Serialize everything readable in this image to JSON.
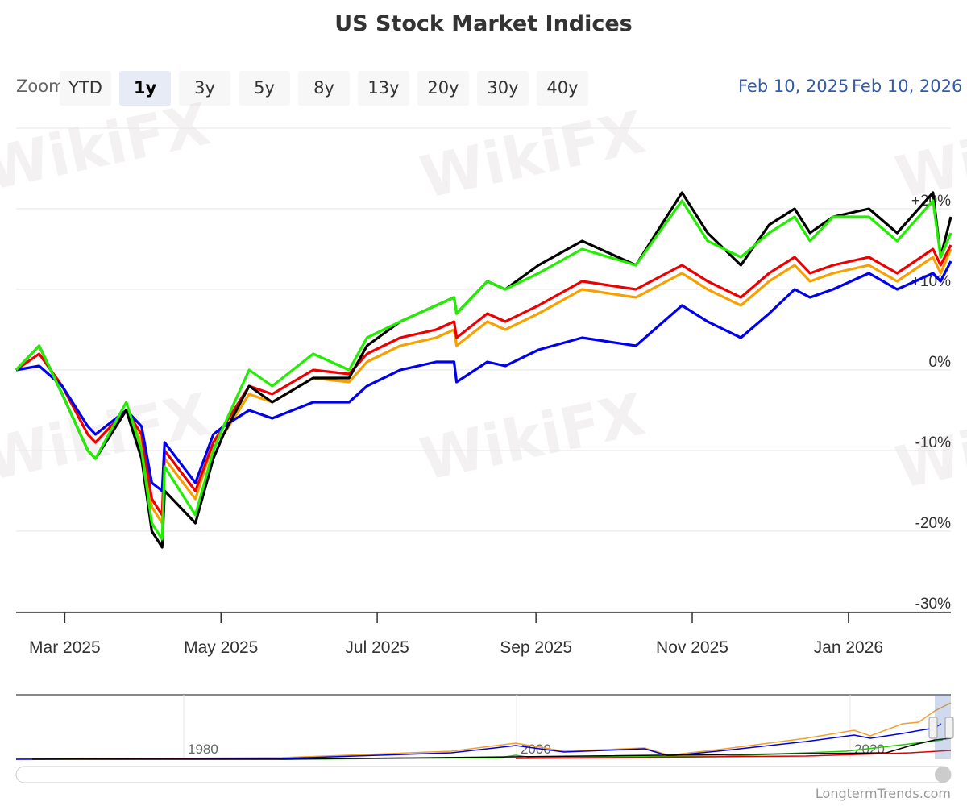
{
  "title": "US Stock Market Indices",
  "zoom": {
    "label": "Zoom",
    "buttons": [
      "YTD",
      "1y",
      "3y",
      "5y",
      "8y",
      "13y",
      "20y",
      "30y",
      "40y"
    ],
    "selected": "1y"
  },
  "range": {
    "from": "Feb 10, 2025",
    "to": "Feb 10, 2026"
  },
  "credit": "LongtermTrends.com",
  "watermark": "WikiFX",
  "navigator": {
    "ticks": [
      "1980",
      "2000",
      "2020"
    ]
  },
  "chart_data": {
    "type": "line",
    "title": "US Stock Market Indices",
    "xlabel": "",
    "ylabel": "",
    "ylim": [
      -30,
      30
    ],
    "y_unit": "%",
    "y_ticks": [
      "-30%",
      "-20%",
      "-10%",
      "0%",
      "+10%",
      "+20%"
    ],
    "x_ticks": [
      {
        "date": "2025-03-01",
        "label": "Mar 2025"
      },
      {
        "date": "2025-05-01",
        "label": "May 2025"
      },
      {
        "date": "2025-07-01",
        "label": "Jul 2025"
      },
      {
        "date": "2025-09-01",
        "label": "Sep 2025"
      },
      {
        "date": "2025-11-01",
        "label": "Nov 2025"
      },
      {
        "date": "2026-01-01",
        "label": "Jan 2026"
      }
    ],
    "xlim": [
      "2025-02-10",
      "2026-02-10"
    ],
    "grid": true,
    "legend": "none",
    "x": [
      "2025-02-10",
      "2025-02-19",
      "2025-02-28",
      "2025-03-10",
      "2025-03-13",
      "2025-03-25",
      "2025-03-31",
      "2025-04-04",
      "2025-04-08",
      "2025-04-09",
      "2025-04-21",
      "2025-04-28",
      "2025-05-02",
      "2025-05-12",
      "2025-05-21",
      "2025-06-06",
      "2025-06-20",
      "2025-06-27",
      "2025-07-10",
      "2025-07-24",
      "2025-07-31",
      "2025-08-01",
      "2025-08-13",
      "2025-08-20",
      "2025-09-02",
      "2025-09-19",
      "2025-10-10",
      "2025-10-28",
      "2025-11-07",
      "2025-11-20",
      "2025-12-01",
      "2025-12-11",
      "2025-12-17",
      "2025-12-26",
      "2026-01-09",
      "2026-01-20",
      "2026-02-03",
      "2026-02-06",
      "2026-02-10"
    ],
    "series": [
      {
        "color": "#f7a000",
        "values": [
          0,
          2,
          -2,
          -8,
          -9,
          -5,
          -9,
          -17,
          -19,
          -11,
          -16,
          -9,
          -8,
          -3,
          -4,
          -1,
          -1.5,
          1,
          3,
          4,
          5,
          3,
          6,
          5,
          7,
          10,
          9,
          12,
          10,
          8,
          11,
          13,
          11,
          12,
          13,
          11,
          14,
          12,
          15
        ]
      },
      {
        "color": "#ee0000",
        "values": [
          0,
          2,
          -2,
          -8,
          -9,
          -5,
          -8,
          -16,
          -18,
          -10,
          -15,
          -9,
          -7,
          -2,
          -3,
          0,
          -0.5,
          2,
          4,
          5,
          6,
          4,
          7,
          6,
          8,
          11,
          10,
          13,
          11,
          9,
          12,
          14,
          12,
          13,
          14,
          12,
          15,
          13,
          15.5
        ]
      },
      {
        "color": "#0000ee",
        "values": [
          0,
          0.5,
          -2,
          -7,
          -8,
          -5,
          -7,
          -14,
          -15,
          -9,
          -14,
          -8,
          -7,
          -5,
          -6,
          -4,
          -4,
          -2,
          0,
          1,
          1,
          -1.5,
          1,
          0.5,
          2.5,
          4,
          3,
          8,
          6,
          4,
          7,
          10,
          9,
          10,
          12,
          10,
          12,
          11,
          13.5
        ]
      },
      {
        "color": "#000000",
        "values": [
          0,
          3,
          -3,
          -10,
          -11,
          -5,
          -11,
          -20,
          -22,
          -15,
          -19,
          -11,
          -8,
          -2,
          -4,
          -1,
          -1,
          3,
          6,
          8,
          9,
          7,
          11,
          10,
          13,
          16,
          13,
          22,
          17,
          13,
          18,
          20,
          17,
          19,
          20,
          17,
          22,
          14,
          19
        ]
      },
      {
        "color": "#22ee00",
        "values": [
          0,
          3,
          -3,
          -10,
          -11,
          -4,
          -10,
          -19,
          -21,
          -12,
          -18,
          -10,
          -7,
          0,
          -2,
          2,
          0,
          4,
          6,
          8,
          9,
          7,
          11,
          10,
          12,
          15,
          13,
          21,
          16,
          14,
          17,
          19,
          16,
          19,
          19,
          16,
          21,
          14,
          17
        ]
      }
    ]
  }
}
